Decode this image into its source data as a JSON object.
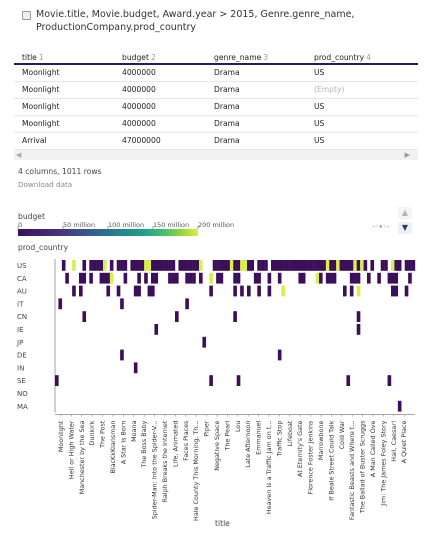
{
  "query": {
    "text": "Movie.title, Movie.budget,  Award.year > 2015, Genre.genre_name, ProductionCompany.prod_country"
  },
  "table": {
    "columns": [
      {
        "label": "title",
        "sort": "1"
      },
      {
        "label": "budget",
        "sort": "2"
      },
      {
        "label": "genre_name",
        "sort": "3"
      },
      {
        "label": "prod_country",
        "sort": "4"
      }
    ],
    "rows": [
      [
        "Moonlight",
        "4000000",
        "Drama",
        "US"
      ],
      [
        "Moonlight",
        "4000000",
        "Drama",
        "(Empty)"
      ],
      [
        "Moonlight",
        "4000000",
        "Drama",
        "US"
      ],
      [
        "Moonlight",
        "4000000",
        "Drama",
        "US"
      ],
      [
        "Arrival",
        "47000000",
        "Drama",
        "US"
      ]
    ]
  },
  "summary": "4 columns, 1011 rows",
  "download_label": "Download data",
  "icons": {
    "query": "square-icon",
    "scroll_left": "chevron-left-icon",
    "scroll_right": "chevron-right-icon",
    "legend_up": "triangle-up-icon",
    "legend_down": "triangle-down-icon",
    "filter": "filter-icon"
  },
  "legend": {
    "title": "budget",
    "ticks": [
      "0",
      "50 million",
      "100 million",
      "150 million",
      "200 million"
    ],
    "tick_values": [
      0,
      50000000,
      100000000,
      150000000,
      200000000
    ],
    "colors": [
      "#3b0f59",
      "#277f8e",
      "#4ac16d",
      "#d9ef4a"
    ]
  },
  "chart_data": {
    "type": "heatmap",
    "row_title": "prod_country",
    "col_title": "title",
    "rows": [
      "US",
      "CA",
      "AU",
      "IT",
      "CN",
      "IE",
      "JP",
      "DE",
      "IN",
      "SE",
      "NO",
      "MA"
    ],
    "col_labels": [
      "Moonlight",
      "Hell or High Water",
      "Manchester by the Sea",
      "Dunkirk",
      "The Post",
      "BlacKkKlansman",
      "A Star Is Born",
      "Moana",
      "The Boss Baby",
      "Spider-Man: Into the Spider-V...",
      "Ralph Breaks the Internet",
      "Life, Animated",
      "Faces Places",
      "Hale County This Morning, Th...",
      "Piper",
      "Negative Space",
      "The Pearl",
      "Lou",
      "Late Afternoon",
      "Emmanuel",
      "Heaven Is a Traffic Jam on t...",
      "Traffic Stop",
      "Lifeboat",
      "At Eternity's Gate",
      "Florence Foster Jenkins",
      "Marrowbone",
      "If Beale Street Could Talk",
      "Cold War",
      "Fantastic Beasts and Where t...",
      "The Ballad of Buster Scruggs",
      "A Man Called Ove",
      "Jim: The James Foley Story",
      "Hail, Caesar!",
      "A Quiet Place"
    ]
  }
}
